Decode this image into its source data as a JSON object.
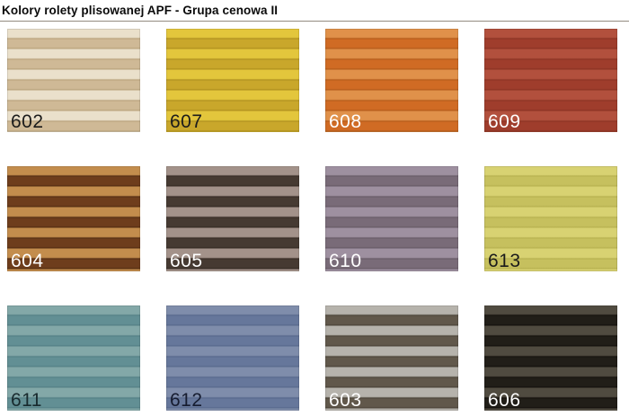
{
  "page": {
    "title": "Kolory rolety plisowanej APF - Grupa cenowa II",
    "rule_color": "#938b80"
  },
  "swatches": [
    {
      "code": "602",
      "stripe_light": "#eae0cb",
      "stripe_dark": "#cfb996",
      "stripe_edge": "#b9a27b",
      "label_color": "#1b1b1b"
    },
    {
      "code": "607",
      "stripe_light": "#e3c63c",
      "stripe_dark": "#c9a72b",
      "stripe_edge": "#ae8f1e",
      "label_color": "#1b1b1b"
    },
    {
      "code": "608",
      "stripe_light": "#e0914a",
      "stripe_dark": "#d06b24",
      "stripe_edge": "#b25a1a",
      "label_color": "#ffffff"
    },
    {
      "code": "609",
      "stripe_light": "#b2503d",
      "stripe_dark": "#9f3d2c",
      "stripe_edge": "#8a3323",
      "label_color": "#ffffff"
    },
    {
      "code": "604",
      "stripe_light": "#c38d4d",
      "stripe_dark": "#6e3d1c",
      "stripe_edge": "#532c12",
      "label_color": "#ffffff"
    },
    {
      "code": "605",
      "stripe_light": "#a3928a",
      "stripe_dark": "#463a32",
      "stripe_edge": "#352b24",
      "label_color": "#ffffff"
    },
    {
      "code": "610",
      "stripe_light": "#9e90a0",
      "stripe_dark": "#796b78",
      "stripe_edge": "#675a66",
      "label_color": "#ffffff"
    },
    {
      "code": "613",
      "stripe_light": "#d8d272",
      "stripe_dark": "#c6c05e",
      "stripe_edge": "#b6b04f",
      "label_color": "#1b1b1b"
    },
    {
      "code": "611",
      "stripe_light": "#83a8a8",
      "stripe_dark": "#628f94",
      "stripe_edge": "#537f85",
      "label_color": "#182a2e"
    },
    {
      "code": "612",
      "stripe_light": "#7f8dab",
      "stripe_dark": "#66779b",
      "stripe_edge": "#57688c",
      "label_color": "#161c30"
    },
    {
      "code": "603",
      "stripe_light": "#b6b3ac",
      "stripe_dark": "#61584b",
      "stripe_edge": "#4a4238",
      "label_color": "#ffffff"
    },
    {
      "code": "606",
      "stripe_light": "#504b40",
      "stripe_dark": "#211e18",
      "stripe_edge": "#14110d",
      "label_color": "#ffffff"
    }
  ]
}
